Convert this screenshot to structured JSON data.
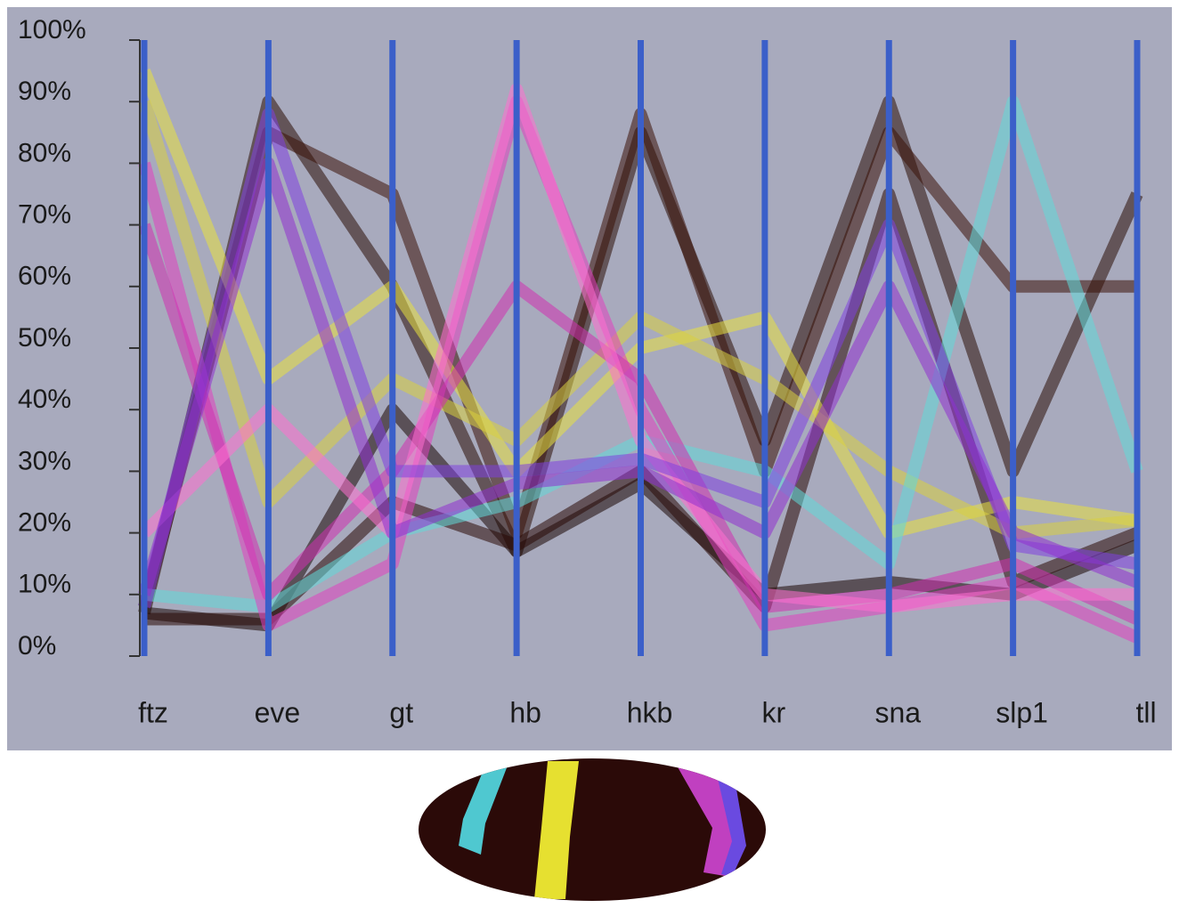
{
  "chart_data": {
    "type": "parallel",
    "categories": [
      "ftz",
      "eve",
      "gt",
      "hb",
      "hkb",
      "kr",
      "sna",
      "slp1",
      "tll"
    ],
    "ylim": [
      0,
      100
    ],
    "yticks": [
      {
        "value": 0,
        "label": "0%"
      },
      {
        "value": 10,
        "label": "10%"
      },
      {
        "value": 20,
        "label": "20%"
      },
      {
        "value": 30,
        "label": "30%"
      },
      {
        "value": 40,
        "label": "40%"
      },
      {
        "value": 50,
        "label": "50%"
      },
      {
        "value": 60,
        "label": "60%"
      },
      {
        "value": 70,
        "label": "70%"
      },
      {
        "value": 80,
        "label": "80%"
      },
      {
        "value": 90,
        "label": "90%"
      },
      {
        "value": 100,
        "label": "100%"
      }
    ],
    "axis_color": "#3b5fc9",
    "series": [
      {
        "color": "#2a0c06",
        "values": [
          7,
          90,
          60,
          17,
          85,
          35,
          90,
          30,
          75
        ]
      },
      {
        "color": "#3a1008",
        "values": [
          8,
          85,
          75,
          20,
          88,
          30,
          85,
          60,
          60
        ]
      },
      {
        "color": "#1a0604",
        "values": [
          7,
          5,
          40,
          17,
          28,
          10,
          12,
          10,
          18
        ]
      },
      {
        "color": "#2a0a06",
        "values": [
          6,
          6,
          25,
          18,
          30,
          8,
          75,
          12,
          20
        ]
      },
      {
        "color": "#e8e040",
        "values": [
          95,
          45,
          60,
          30,
          50,
          55,
          20,
          25,
          22
        ]
      },
      {
        "color": "#d8d040",
        "values": [
          90,
          25,
          45,
          35,
          55,
          45,
          30,
          20,
          22
        ]
      },
      {
        "color": "#60d8d8",
        "values": [
          10,
          8,
          20,
          25,
          35,
          30,
          15,
          90,
          30
        ]
      },
      {
        "color": "#e040c0",
        "values": [
          80,
          5,
          15,
          90,
          40,
          5,
          8,
          12,
          3
        ]
      },
      {
        "color": "#d030b0",
        "values": [
          70,
          10,
          30,
          60,
          45,
          8,
          10,
          15,
          6
        ]
      },
      {
        "color": "#ff70d0",
        "values": [
          20,
          40,
          20,
          92,
          35,
          10,
          8,
          10,
          10
        ]
      },
      {
        "color": "#8040e0",
        "values": [
          8,
          88,
          30,
          30,
          32,
          25,
          70,
          18,
          15
        ]
      },
      {
        "color": "#9030d0",
        "values": [
          10,
          80,
          20,
          28,
          30,
          20,
          60,
          20,
          12
        ]
      }
    ]
  }
}
